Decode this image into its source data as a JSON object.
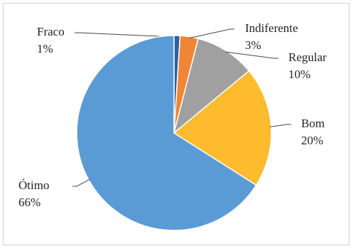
{
  "chart_data": {
    "type": "pie",
    "categories": [
      "Fraco",
      "Indiferente",
      "Regular",
      "Bom",
      "Ótimo"
    ],
    "values": [
      1,
      3,
      10,
      20,
      66
    ],
    "value_labels": [
      "1%",
      "3%",
      "10%",
      "20%",
      "66%"
    ],
    "colors": [
      "#2e5ea8",
      "#ef8535",
      "#a0a0a0",
      "#fdbb2d",
      "#5b9bd5"
    ]
  }
}
